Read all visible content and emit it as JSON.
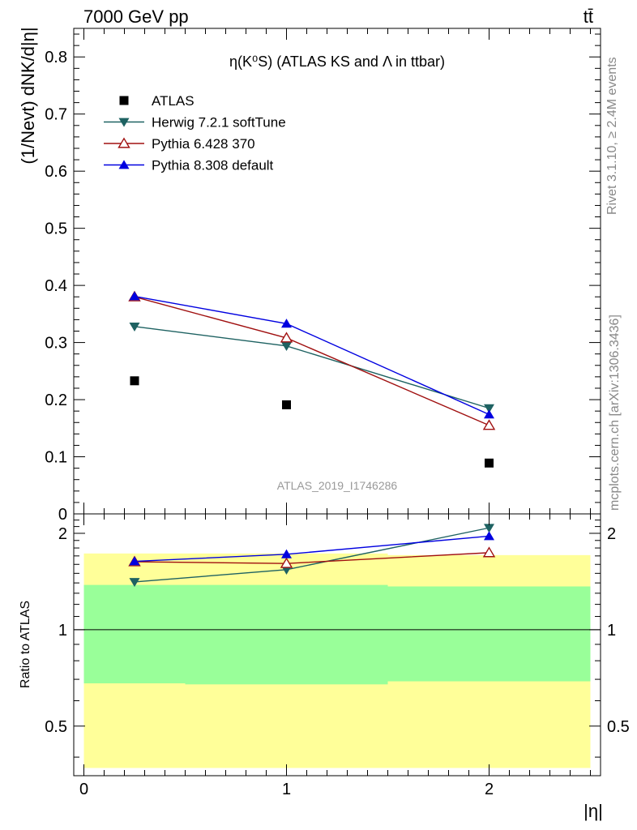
{
  "header": {
    "energy_label": "7000 GeV pp",
    "process_label": "tt̄"
  },
  "side_labels": {
    "rivet": "Rivet 3.1.10, ≥ 2.4M events",
    "mcplots": "mcplots.cern.ch [arXiv:1306.3436]"
  },
  "chart_data": [
    {
      "type": "scatter",
      "panel": "main",
      "title": "η(K⁰S) (ATLAS KS and Λ in ttbar)",
      "ylabel": "(1/Nevt) dNK/d|η|",
      "watermark": "ATLAS_2019_I1746286",
      "xlim": [
        -0.05,
        2.55
      ],
      "ylim": [
        0,
        0.85
      ],
      "yticks": [
        0,
        0.1,
        0.2,
        0.3,
        0.4,
        0.5,
        0.6,
        0.7,
        0.8
      ],
      "ytick_labels": [
        "0",
        "0.1",
        "0.2",
        "0.3",
        "0.4",
        "0.5",
        "0.6",
        "0.7",
        "0.8"
      ],
      "legend_position": "top-left",
      "x": [
        0.25,
        1.0,
        2.0
      ],
      "series": [
        {
          "name": "ATLAS",
          "color": "#000000",
          "marker": "square",
          "line": false,
          "values": [
            0.233,
            0.191,
            0.089
          ]
        },
        {
          "name": "Herwig 7.2.1 softTune",
          "color": "#1e6262",
          "marker": "triangle-down",
          "line": true,
          "values": [
            0.328,
            0.294,
            0.185
          ]
        },
        {
          "name": "Pythia 6.428 370",
          "color": "#a01010",
          "marker": "triangle-up-open",
          "line": true,
          "values": [
            0.38,
            0.308,
            0.155
          ]
        },
        {
          "name": "Pythia 8.308 default",
          "color": "#0000e0",
          "marker": "triangle-up",
          "line": true,
          "values": [
            0.381,
            0.333,
            0.174
          ]
        }
      ]
    },
    {
      "type": "line",
      "panel": "ratio",
      "ylabel": "Ratio to ATLAS",
      "xlabel": "|η|",
      "xlim": [
        -0.05,
        2.55
      ],
      "ylim": [
        0.35,
        2.3
      ],
      "log_y": true,
      "xticks": [
        0,
        1,
        2
      ],
      "xtick_labels": [
        "0",
        "1",
        "2"
      ],
      "yticks": [
        0.5,
        1,
        2
      ],
      "ytick_labels": [
        "0.5",
        "1",
        "2"
      ],
      "bands": {
        "bins": [
          [
            0,
            0.5
          ],
          [
            0.5,
            1.5
          ],
          [
            1.5,
            2.5
          ]
        ],
        "yellow": {
          "color": "#ffff99",
          "low": [
            0.37,
            0.37,
            0.37
          ],
          "high": [
            1.73,
            1.73,
            1.71
          ]
        },
        "green": {
          "color": "#99ff99",
          "low": [
            0.68,
            0.675,
            0.69
          ],
          "high": [
            1.38,
            1.38,
            1.365
          ]
        }
      },
      "x": [
        0.25,
        1.0,
        2.0
      ],
      "series": [
        {
          "name": "Herwig 7.2.1 softTune",
          "color": "#1e6262",
          "marker": "triangle-down",
          "values": [
            1.41,
            1.54,
            2.08
          ]
        },
        {
          "name": "Pythia 6.428 370",
          "color": "#a01010",
          "marker": "triangle-up-open",
          "values": [
            1.63,
            1.61,
            1.74
          ]
        },
        {
          "name": "Pythia 8.308 default",
          "color": "#0000e0",
          "marker": "triangle-up",
          "values": [
            1.635,
            1.72,
            1.96
          ]
        }
      ]
    }
  ]
}
